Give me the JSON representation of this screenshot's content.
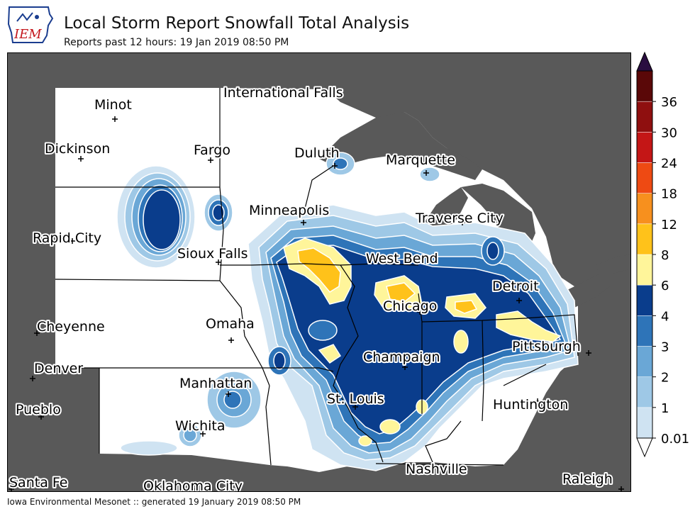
{
  "header": {
    "logo_text": "IEM",
    "title": "Local Storm Report Snowfall Total Analysis",
    "subtitle": "Reports past 12 hours: 19 Jan 2019 08:50 PM"
  },
  "footer": "Iowa Environmental Mesonet :: generated 19 January 2019 08:50 PM",
  "legend": {
    "unit": "",
    "levels": [
      {
        "label": "0.01",
        "color": "#cfe3f2"
      },
      {
        "label": "1",
        "color": "#9ec8e6"
      },
      {
        "label": "2",
        "color": "#6aa7d6"
      },
      {
        "label": "3",
        "color": "#2e74b8"
      },
      {
        "label": "4",
        "color": "#0a3d8c"
      },
      {
        "label": "6",
        "color": "#fff59a"
      },
      {
        "label": "8",
        "color": "#ffc21a"
      },
      {
        "label": "12",
        "color": "#f7901e"
      },
      {
        "label": "18",
        "color": "#ee4a13"
      },
      {
        "label": "24",
        "color": "#c41616"
      },
      {
        "label": "30",
        "color": "#8f0f0f"
      },
      {
        "label": "36",
        "color": "#5a0808"
      }
    ],
    "overflow_top_color": "#2a0e40",
    "underflow_bottom_color": "#ffffff"
  },
  "colors": {
    "land_outside": "#595959",
    "land_inside": "#ffffff",
    "water": "#595959",
    "borders": "#000000"
  },
  "cities": [
    {
      "name": "Minot"
    },
    {
      "name": "International Falls"
    },
    {
      "name": "Dickinson"
    },
    {
      "name": "Fargo"
    },
    {
      "name": "Duluth"
    },
    {
      "name": "Marquette"
    },
    {
      "name": "Minneapolis"
    },
    {
      "name": "Traverse City"
    },
    {
      "name": "Rapid City"
    },
    {
      "name": "Sioux Falls"
    },
    {
      "name": "West Bend"
    },
    {
      "name": "Detroit"
    },
    {
      "name": "Chicago"
    },
    {
      "name": "Cheyenne"
    },
    {
      "name": "Omaha"
    },
    {
      "name": "Pittsburgh"
    },
    {
      "name": "Champaign"
    },
    {
      "name": "Denver"
    },
    {
      "name": "Manhattan"
    },
    {
      "name": "St. Louis"
    },
    {
      "name": "Huntington"
    },
    {
      "name": "Pueblo"
    },
    {
      "name": "Wichita"
    },
    {
      "name": "Nashville"
    },
    {
      "name": "Santa Fe"
    },
    {
      "name": "Oklahoma City"
    },
    {
      "name": "Raleigh"
    }
  ]
}
